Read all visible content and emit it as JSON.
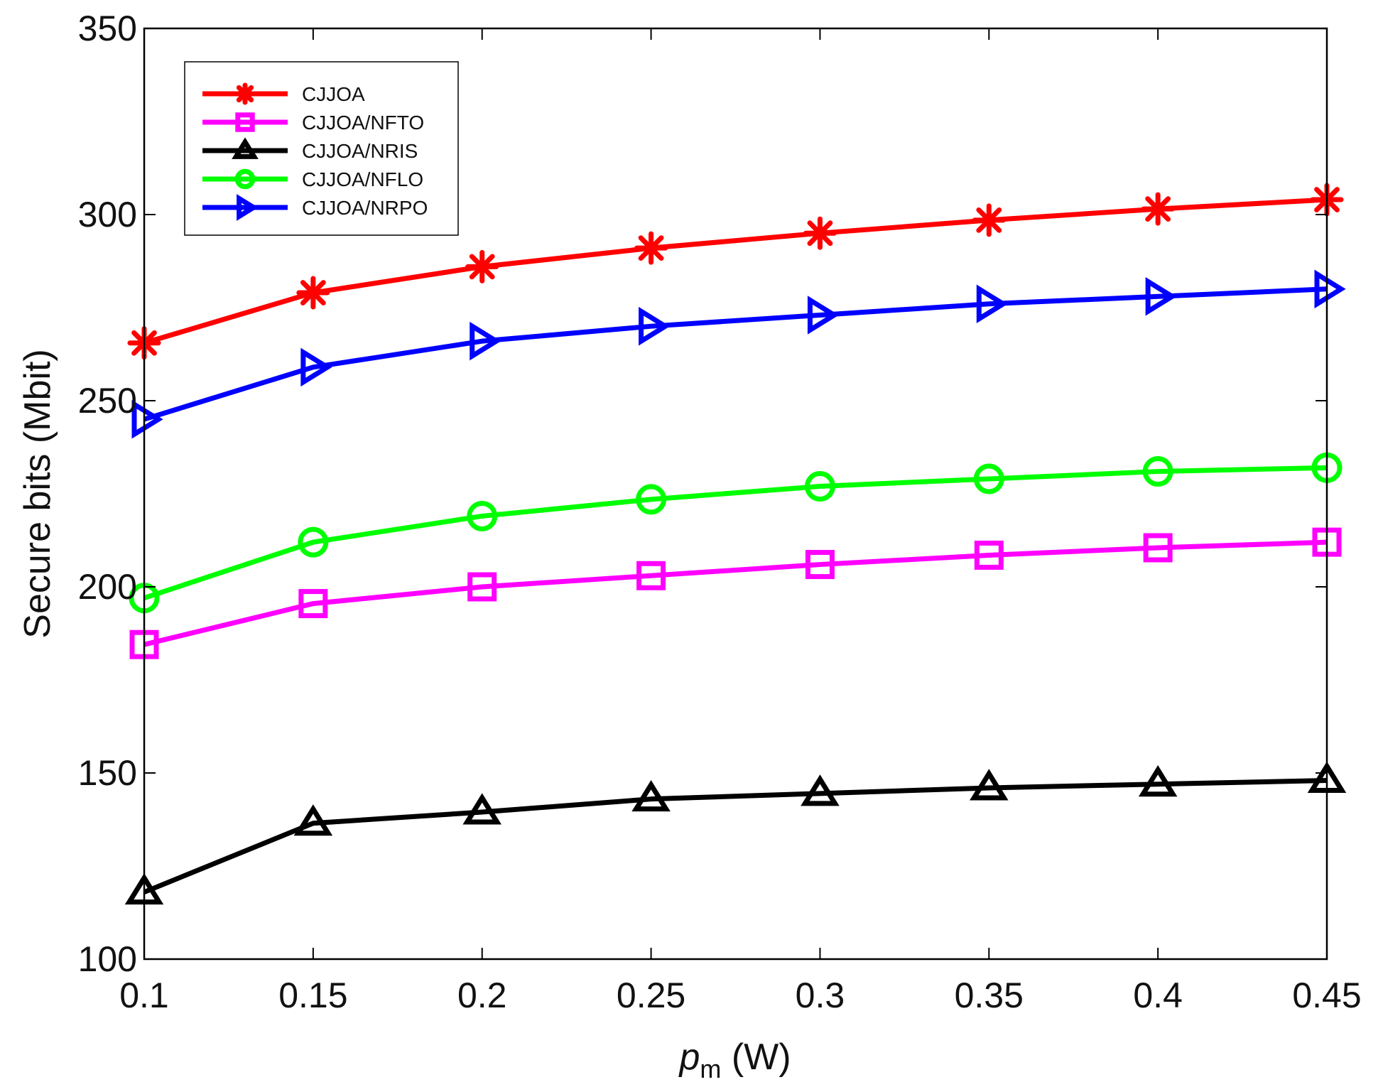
{
  "chart_data": {
    "type": "line",
    "title": "",
    "xlabel": "p",
    "xlabel_subscript": "m",
    "xlabel_unit": " (W)",
    "ylabel": "Secure bits (Mbit)",
    "x": [
      0.1,
      0.15,
      0.2,
      0.25,
      0.3,
      0.35,
      0.4,
      0.45
    ],
    "xlim": [
      0.1,
      0.45
    ],
    "ylim": [
      100,
      350
    ],
    "xticks": [
      0.1,
      0.15,
      0.2,
      0.25,
      0.3,
      0.35,
      0.4,
      0.45
    ],
    "xtick_labels": [
      "0.1",
      "0.15",
      "0.2",
      "0.25",
      "0.3",
      "0.35",
      "0.4",
      "0.45"
    ],
    "yticks": [
      100,
      150,
      200,
      250,
      300,
      350
    ],
    "ytick_labels": [
      "100",
      "150",
      "200",
      "250",
      "300",
      "350"
    ],
    "grid": false,
    "legend_position": "top-left",
    "series": [
      {
        "name": "CJJOA",
        "color": "#ff0000",
        "marker": "asterisk",
        "values": [
          265.5,
          279,
          286,
          291,
          295,
          298.5,
          301.5,
          304
        ]
      },
      {
        "name": "CJJOA/NFTO",
        "color": "#ff00ff",
        "marker": "square",
        "values": [
          184.5,
          195.5,
          200,
          203,
          206,
          208.5,
          210.5,
          212
        ]
      },
      {
        "name": "CJJOA/NRIS",
        "color": "#000000",
        "marker": "triangle-up",
        "values": [
          118,
          136.5,
          139.5,
          143,
          144.5,
          146,
          147,
          148
        ]
      },
      {
        "name": "CJJOA/NFLO",
        "color": "#00ff00",
        "marker": "circle",
        "values": [
          197,
          212,
          219,
          223.5,
          227,
          229,
          231,
          232
        ]
      },
      {
        "name": "CJJOA/NRPO",
        "color": "#0000ff",
        "marker": "triangle-right",
        "values": [
          245,
          259,
          266,
          270,
          273,
          276,
          278,
          280
        ]
      }
    ]
  }
}
